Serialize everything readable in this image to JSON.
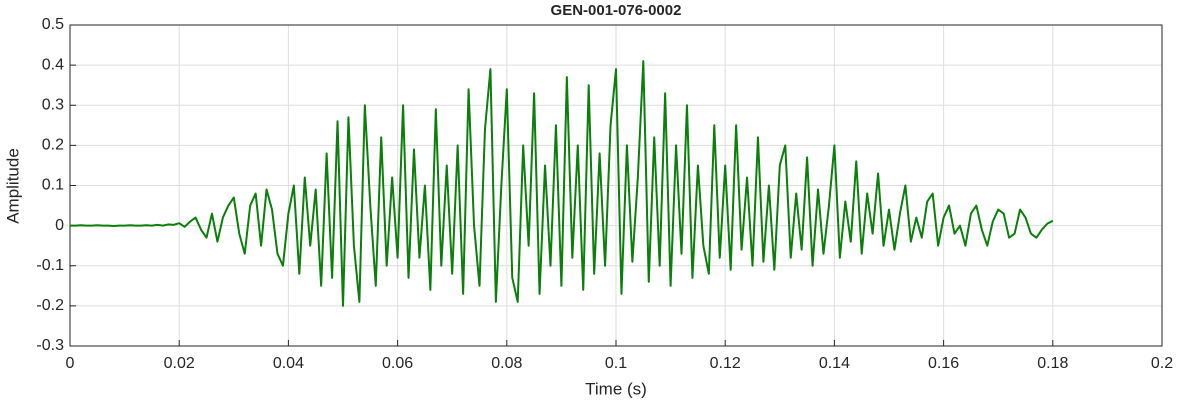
{
  "chart_data": {
    "type": "line",
    "title": "GEN-001-076-0002",
    "x_label": "Time (s)",
    "y_label": "Amplitude",
    "x": [
      0,
      0.001,
      0.002,
      0.003,
      0.004,
      0.005,
      0.006,
      0.007,
      0.008,
      0.009,
      0.01,
      0.011,
      0.012,
      0.013,
      0.014,
      0.015,
      0.016,
      0.017,
      0.018,
      0.019,
      0.02,
      0.021,
      0.022,
      0.023,
      0.024,
      0.025,
      0.026,
      0.027,
      0.028,
      0.029,
      0.03,
      0.031,
      0.032,
      0.033,
      0.034,
      0.035,
      0.036,
      0.037,
      0.038,
      0.039,
      0.04,
      0.041,
      0.042,
      0.043,
      0.044,
      0.045,
      0.046,
      0.047,
      0.048,
      0.049,
      0.05,
      0.051,
      0.052,
      0.053,
      0.054,
      0.055,
      0.056,
      0.057,
      0.058,
      0.059,
      0.06,
      0.061,
      0.062,
      0.063,
      0.064,
      0.065,
      0.066,
      0.067,
      0.068,
      0.069,
      0.07,
      0.071,
      0.072,
      0.073,
      0.074,
      0.075,
      0.076,
      0.077,
      0.078,
      0.079,
      0.08,
      0.081,
      0.082,
      0.083,
      0.084,
      0.085,
      0.086,
      0.087,
      0.088,
      0.089,
      0.09,
      0.091,
      0.092,
      0.093,
      0.094,
      0.095,
      0.096,
      0.097,
      0.098,
      0.099,
      0.1,
      0.101,
      0.102,
      0.103,
      0.104,
      0.105,
      0.106,
      0.107,
      0.108,
      0.109,
      0.11,
      0.111,
      0.112,
      0.113,
      0.114,
      0.115,
      0.116,
      0.117,
      0.118,
      0.119,
      0.12,
      0.121,
      0.122,
      0.123,
      0.124,
      0.125,
      0.126,
      0.127,
      0.128,
      0.129,
      0.13,
      0.131,
      0.132,
      0.133,
      0.134,
      0.135,
      0.136,
      0.137,
      0.138,
      0.139,
      0.14,
      0.141,
      0.142,
      0.143,
      0.144,
      0.145,
      0.146,
      0.147,
      0.148,
      0.149,
      0.15,
      0.151,
      0.152,
      0.153,
      0.154,
      0.155,
      0.156,
      0.157,
      0.158,
      0.159,
      0.16,
      0.161,
      0.162,
      0.163,
      0.164,
      0.165,
      0.166,
      0.167,
      0.168,
      0.169,
      0.17,
      0.171,
      0.172,
      0.173,
      0.174,
      0.175,
      0.176,
      0.177,
      0.178,
      0.179,
      0.18
    ],
    "values": [
      0,
      0,
      0.001,
      0,
      0,
      0.001,
      0,
      0,
      -0.001,
      0,
      0,
      0.001,
      0,
      0,
      0.001,
      0,
      0.002,
      0,
      0.003,
      0.002,
      0.006,
      -0.003,
      0.01,
      0.02,
      -0.01,
      -0.03,
      0.03,
      -0.04,
      0.02,
      0.05,
      0.07,
      -0.02,
      -0.07,
      0.05,
      0.08,
      -0.05,
      0.09,
      0.04,
      -0.07,
      -0.1,
      0.03,
      0.1,
      -0.12,
      0.12,
      -0.05,
      0.09,
      -0.15,
      0.18,
      -0.13,
      0.26,
      -0.2,
      0.27,
      -0.05,
      -0.19,
      0.3,
      0.05,
      -0.15,
      0.22,
      -0.1,
      0.12,
      -0.08,
      0.3,
      -0.13,
      0.19,
      -0.08,
      0.1,
      -0.16,
      0.29,
      -0.1,
      0.15,
      -0.12,
      0.2,
      -0.17,
      0.34,
      0,
      -0.15,
      0.24,
      0.39,
      -0.19,
      0.1,
      0.34,
      -0.13,
      -0.19,
      0.2,
      -0.05,
      0.33,
      -0.17,
      0.15,
      -0.1,
      0.25,
      -0.15,
      0.37,
      -0.08,
      0.2,
      -0.16,
      0.35,
      -0.12,
      0.18,
      -0.1,
      0.25,
      0.39,
      -0.17,
      0.2,
      -0.09,
      0.12,
      0.41,
      -0.14,
      0.22,
      -0.1,
      0.33,
      -0.15,
      0.2,
      -0.07,
      0.3,
      -0.13,
      0.15,
      -0.05,
      -0.12,
      0.25,
      -0.08,
      0.15,
      -0.11,
      0.25,
      -0.06,
      0.12,
      -0.1,
      0.22,
      -0.09,
      0.1,
      -0.11,
      0.15,
      0.2,
      -0.08,
      0.08,
      -0.06,
      0.17,
      -0.1,
      0.09,
      -0.07,
      0.05,
      0.2,
      -0.08,
      0.06,
      -0.04,
      0.16,
      -0.07,
      0.08,
      -0.02,
      0.13,
      -0.05,
      0.04,
      -0.06,
      0.03,
      0.1,
      -0.04,
      0.02,
      -0.03,
      0.06,
      0.08,
      -0.05,
      0.02,
      0.05,
      -0.02,
      0,
      -0.05,
      0.03,
      0.05,
      -0.01,
      -0.05,
      0.01,
      0.04,
      0.03,
      -0.03,
      -0.02,
      0.04,
      0.02,
      -0.02,
      -0.03,
      -0.01,
      0.005,
      0.012
    ],
    "color": "#0a7f0a",
    "xlim": [
      0,
      0.2
    ],
    "xticks": [
      0,
      0.02,
      0.04,
      0.06,
      0.08,
      0.1,
      0.12,
      0.14,
      0.16,
      0.18,
      0.2
    ],
    "ylim": [
      -0.3,
      0.5
    ],
    "yticks": [
      -0.3,
      -0.2,
      -0.1,
      0,
      0.1,
      0.2,
      0.3,
      0.4,
      0.5
    ],
    "grid": true
  }
}
